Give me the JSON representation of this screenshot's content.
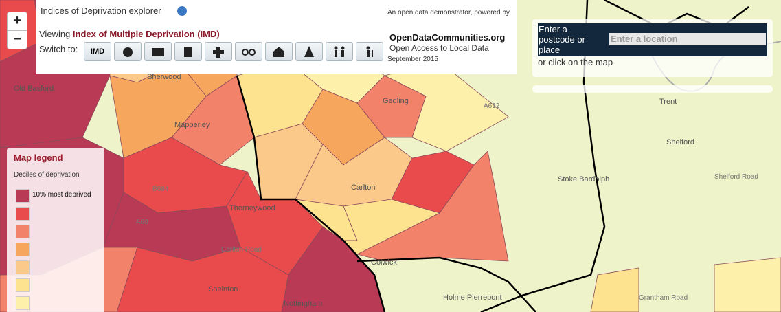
{
  "header": {
    "title": "Indices of Deprivation explorer",
    "viewing": "Viewing",
    "measure": "Index of Multiple Deprivation (IMD)",
    "switch_to": "Switch to:",
    "first_button": "IMD"
  },
  "credit": {
    "intro": "An open data demonstrator, powered by",
    "brand": "OpenDataCommunities.org",
    "tagline": "Open Access to Local Data",
    "date": "September 2015"
  },
  "zoom": {
    "in": "+",
    "out": "−"
  },
  "search": {
    "label": "Enter a postcode or place",
    "placeholder": "Enter a location",
    "hint": "or click on the map"
  },
  "legend": {
    "title": "Map legend",
    "subtitle": "Deciles of deprivation",
    "items": [
      {
        "color": "#b83a55",
        "label": "10% most deprived"
      },
      {
        "color": "#e94a4c"
      },
      {
        "color": "#f2826a"
      },
      {
        "color": "#f7a65e"
      },
      {
        "color": "#fbc98a"
      },
      {
        "color": "#fde38f"
      },
      {
        "color": "#fdf0aa"
      }
    ]
  },
  "places": [
    "Gedling",
    "Carlton",
    "Mapperley",
    "Sherwood",
    "Old Basford",
    "Thorneywood",
    "Sneinton",
    "Nottingham",
    "Holme Pierrepont",
    "Stoke Bardolph",
    "Shelford",
    "Trent",
    "Grantham Road",
    "Colwick",
    "Shelford Road",
    "A612",
    "B684",
    "A60",
    "Carlton Road"
  ]
}
